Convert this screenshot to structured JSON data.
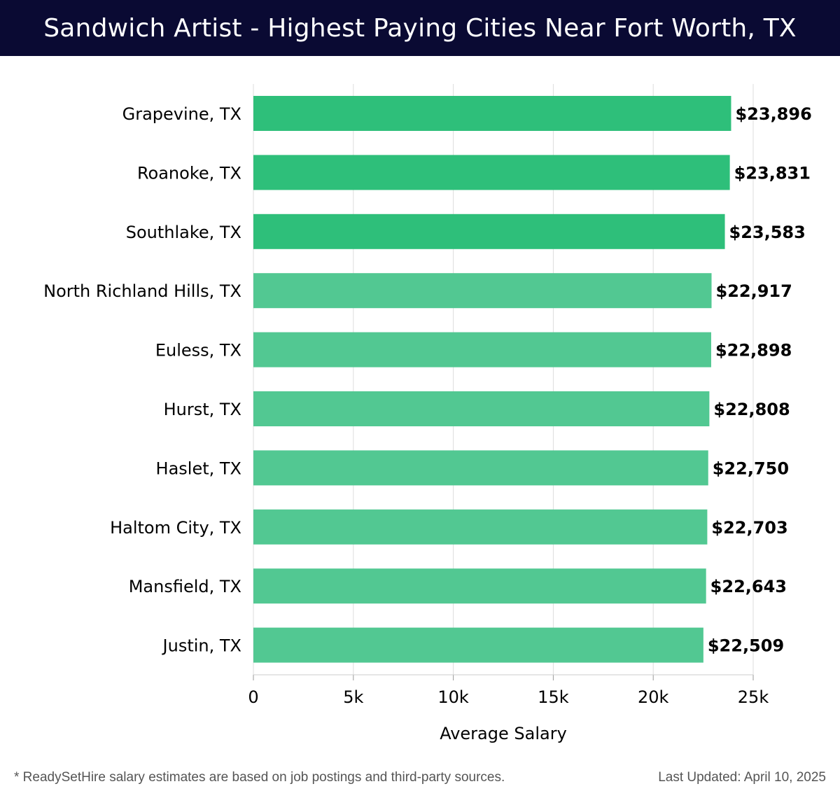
{
  "title": "Sandwich Artist - Highest Paying Cities Near Fort Worth, TX",
  "footer": {
    "note": "* ReadySetHire salary estimates are based on job postings and third-party sources.",
    "updated": "Last Updated: April 10, 2025"
  },
  "colors": {
    "header_bg": "#0a0a33",
    "top_bars": "#2ebf7a",
    "other_bars": "#52c892",
    "grid": "#dddddd"
  },
  "chart_data": {
    "type": "bar",
    "orientation": "horizontal",
    "categories": [
      "Grapevine, TX",
      "Roanoke, TX",
      "Southlake, TX",
      "North Richland Hills, TX",
      "Euless, TX",
      "Hurst, TX",
      "Haslet, TX",
      "Haltom City, TX",
      "Mansfield, TX",
      "Justin, TX"
    ],
    "values": [
      23896,
      23831,
      23583,
      22917,
      22898,
      22808,
      22750,
      22703,
      22643,
      22509
    ],
    "data_labels": [
      "$23,896",
      "$23,831",
      "$23,583",
      "$22,917",
      "$22,898",
      "$22,808",
      "$22,750",
      "$22,703",
      "$22,643",
      "$22,509"
    ],
    "xlabel": "Average Salary",
    "ylabel": "",
    "xlim": [
      0,
      25000
    ],
    "x_ticks": [
      0,
      5000,
      10000,
      15000,
      20000,
      25000
    ],
    "x_tick_labels": [
      "0",
      "5k",
      "10k",
      "15k",
      "20k",
      "25k"
    ],
    "highlight_top": 3,
    "grid": true,
    "legend": "none"
  }
}
